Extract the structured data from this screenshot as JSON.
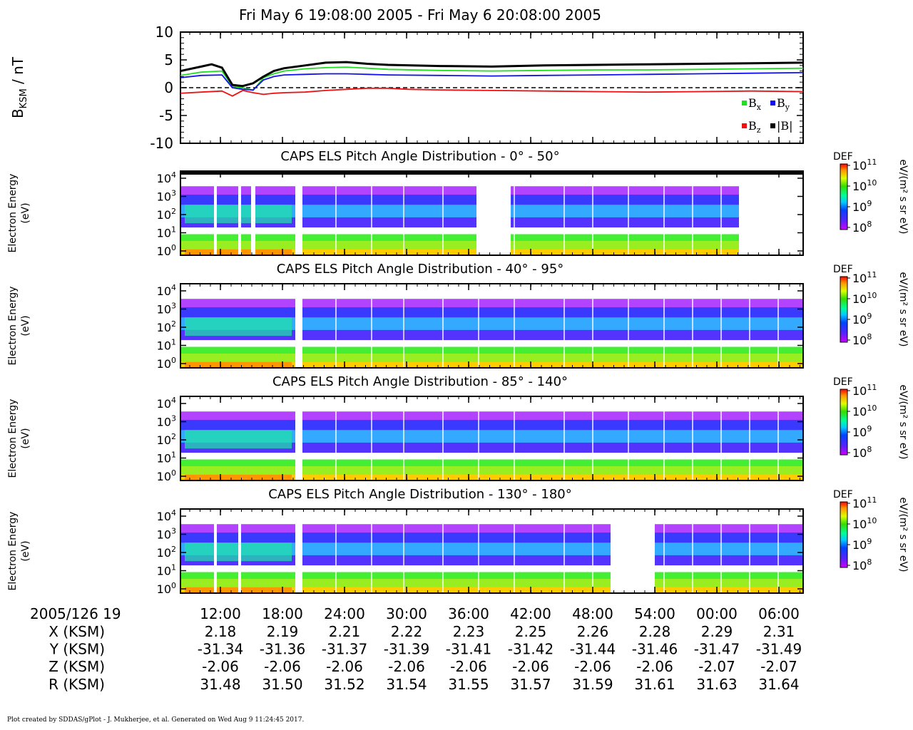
{
  "title": "Fri May 6 19:08:00 2005 - Fri May 6 20:08:00 2005",
  "footer": "Plot created by SDDAS/gPlot - J. Mukherjee, et al.  Generated on Wed Aug 9 11:24:45 2017.",
  "colors": {
    "bx": "#22dd22",
    "by": "#1111ee",
    "bz": "#ee1111",
    "btot": "#000000"
  },
  "mag_panel": {
    "ylabel_main": "B",
    "ylabel_sub": "KSM",
    "ylabel_unit": " / nT",
    "ylim": [
      -10,
      10
    ],
    "yticks": [
      "10",
      "5",
      "0",
      "-5",
      "-10"
    ],
    "legend": [
      {
        "key": "bx",
        "label": "B",
        "sub": "x"
      },
      {
        "key": "by",
        "label": "B",
        "sub": "y"
      },
      {
        "key": "bz",
        "label": "B",
        "sub": "z"
      },
      {
        "key": "btot",
        "label": "|B|",
        "sub": ""
      }
    ]
  },
  "spec_panels": [
    {
      "title": "CAPS ELS Pitch Angle Distribution - 0° - 50°"
    },
    {
      "title": "CAPS ELS Pitch Angle Distribution - 40° - 95°"
    },
    {
      "title": "CAPS ELS Pitch Angle Distribution - 85° - 140°"
    },
    {
      "title": "CAPS ELS Pitch Angle Distribution - 130° - 180°"
    }
  ],
  "spec_ylabel": [
    "Electron Energy",
    "(eV)"
  ],
  "spec_yticks": [
    {
      "base": "10",
      "exp": "4"
    },
    {
      "base": "10",
      "exp": "3"
    },
    {
      "base": "10",
      "exp": "2"
    },
    {
      "base": "10",
      "exp": "1"
    },
    {
      "base": "10",
      "exp": "0"
    }
  ],
  "colorbar": {
    "label": "DEF",
    "unit": "eV/(m² s sr eV)",
    "ticks": [
      {
        "base": "10",
        "exp": "11"
      },
      {
        "base": "10",
        "exp": "10"
      },
      {
        "base": "10",
        "exp": "9"
      },
      {
        "base": "10",
        "exp": "8"
      }
    ]
  },
  "time_axis": {
    "start_label": "2005/126 19",
    "ticks": [
      "12:00",
      "18:00",
      "24:00",
      "30:00",
      "36:00",
      "42:00",
      "48:00",
      "54:00",
      "00:00",
      "06:00"
    ]
  },
  "ephemeris": [
    {
      "label": "X (KSM)",
      "values": [
        "2.18",
        "2.19",
        "2.21",
        "2.22",
        "2.23",
        "2.25",
        "2.26",
        "2.28",
        "2.29",
        "2.31"
      ]
    },
    {
      "label": "Y (KSM)",
      "values": [
        "-31.34",
        "-31.36",
        "-31.37",
        "-31.39",
        "-31.41",
        "-31.42",
        "-31.44",
        "-31.46",
        "-31.47",
        "-31.49"
      ]
    },
    {
      "label": "Z (KSM)",
      "values": [
        "-2.06",
        "-2.06",
        "-2.06",
        "-2.06",
        "-2.06",
        "-2.06",
        "-2.06",
        "-2.06",
        "-2.07",
        "-2.07"
      ]
    },
    {
      "label": "R (KSM)",
      "values": [
        "31.48",
        "31.50",
        "31.52",
        "31.54",
        "31.55",
        "31.57",
        "31.59",
        "31.61",
        "31.63",
        "31.64"
      ]
    }
  ],
  "chart_data": {
    "type": "line",
    "x_unit": "minutes after 19:08",
    "xlim": [
      0,
      60
    ],
    "ylim": [
      -10,
      10
    ],
    "series": [
      {
        "key": "bx",
        "x": [
          0,
          2,
          4,
          5,
          6,
          7,
          8,
          9,
          10,
          12,
          14,
          16,
          18,
          20,
          25,
          30,
          35,
          40,
          45,
          50,
          55,
          60
        ],
        "y": [
          2.2,
          2.8,
          3.0,
          0.2,
          0.0,
          -0.5,
          1.8,
          2.5,
          3.0,
          3.4,
          3.6,
          3.7,
          3.5,
          3.3,
          3.1,
          3.0,
          3.1,
          3.2,
          3.2,
          3.3,
          3.4,
          3.5
        ]
      },
      {
        "key": "by",
        "x": [
          0,
          2,
          4,
          5,
          6,
          7,
          8,
          9,
          10,
          12,
          14,
          16,
          18,
          20,
          25,
          30,
          35,
          40,
          45,
          50,
          55,
          60
        ],
        "y": [
          1.8,
          2.2,
          2.3,
          0.0,
          -0.3,
          -0.4,
          1.4,
          2.0,
          2.3,
          2.4,
          2.5,
          2.5,
          2.4,
          2.3,
          2.2,
          2.1,
          2.2,
          2.3,
          2.4,
          2.5,
          2.6,
          2.7
        ]
      },
      {
        "key": "bz",
        "x": [
          0,
          2,
          4,
          5,
          6,
          7,
          8,
          9,
          10,
          12,
          14,
          16,
          18,
          20,
          22,
          25,
          30,
          35,
          40,
          45,
          50,
          55,
          60
        ],
        "y": [
          -1.0,
          -0.8,
          -0.6,
          -1.5,
          -0.5,
          -0.9,
          -1.2,
          -1.0,
          -0.9,
          -0.8,
          -0.5,
          -0.3,
          -0.1,
          -0.1,
          -0.3,
          -0.4,
          -0.5,
          -0.6,
          -0.7,
          -0.8,
          -0.7,
          -0.6,
          -0.7
        ]
      },
      {
        "key": "btot",
        "x": [
          0,
          2,
          3,
          4,
          5,
          6,
          7,
          8,
          9,
          10,
          12,
          14,
          16,
          18,
          20,
          25,
          30,
          35,
          40,
          45,
          50,
          55,
          60
        ],
        "y": [
          3.0,
          3.8,
          4.2,
          3.6,
          0.5,
          0.3,
          0.8,
          2.0,
          3.0,
          3.5,
          4.0,
          4.5,
          4.6,
          4.3,
          4.1,
          3.9,
          3.8,
          4.0,
          4.1,
          4.2,
          4.3,
          4.4,
          4.5
        ]
      }
    ]
  }
}
